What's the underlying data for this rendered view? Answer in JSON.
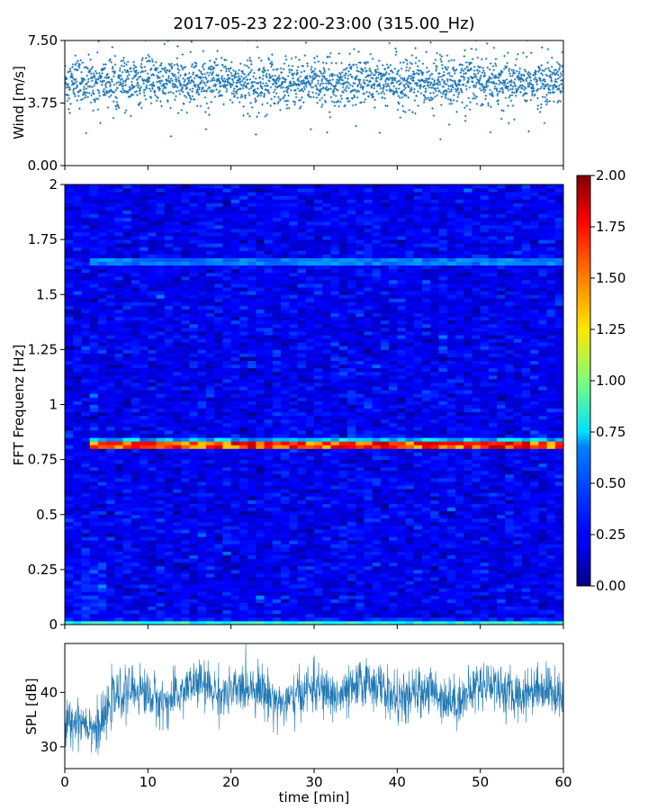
{
  "title": "2017-05-23 22:00-23:00 (315.00_Hz)",
  "chart_data": [
    {
      "type": "scatter",
      "id": "wind",
      "ylabel": "Wind [m/s]",
      "xlim": [
        0,
        60
      ],
      "ylim": [
        0,
        7.5
      ],
      "yticks": [
        "0.00",
        "3.75",
        "7.50"
      ],
      "color": "#1f77b4",
      "description_stats": {
        "mean": 5.0,
        "spread": 0.75,
        "min": 1.5,
        "max": 7.5
      },
      "x_ticks_visible": false
    },
    {
      "type": "heatmap",
      "id": "spectrogram",
      "ylabel": "FFT Frequenz [Hz]",
      "xlim": [
        0,
        60
      ],
      "ylim": [
        0,
        2
      ],
      "yticks": [
        "0",
        "0.25",
        "0.5",
        "0.75",
        "1",
        "1.25",
        "1.5",
        "1.75",
        "2"
      ],
      "colormap": "jet",
      "colorbar": {
        "range": [
          0.0,
          2.0
        ],
        "ticks": [
          "0.00",
          "0.25",
          "0.50",
          "0.75",
          "1.00",
          "1.25",
          "1.50",
          "1.75",
          "2.00"
        ]
      },
      "features": [
        {
          "freq_hz": 0.82,
          "from_min": 3,
          "to_min": 60,
          "level": 1.8
        },
        {
          "freq_hz": 1.65,
          "from_min": 3,
          "to_min": 60,
          "level": 0.55
        },
        {
          "freq_hz": 0.01,
          "from_min": 0,
          "to_min": 60,
          "level": 0.9
        }
      ],
      "x_ticks_visible": false
    },
    {
      "type": "line",
      "id": "spl",
      "ylabel": "SPL [dB]",
      "xlabel": "time [min]",
      "xlim": [
        0,
        60
      ],
      "ylim": [
        26,
        49
      ],
      "yticks": [
        "30",
        "40"
      ],
      "xticks": [
        "0",
        "10",
        "20",
        "30",
        "40",
        "50",
        "60"
      ],
      "color": "#1f77b4",
      "segments": [
        {
          "from_min": 0,
          "to_min": 5.5,
          "mean_db": 33
        },
        {
          "from_min": 5.5,
          "to_min": 60,
          "mean_db": 40
        }
      ]
    }
  ]
}
